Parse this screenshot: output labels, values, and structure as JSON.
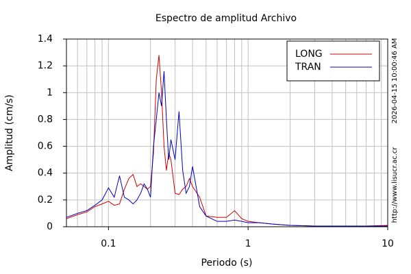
{
  "chart_data": {
    "type": "line",
    "title": "Espectro de amplitud Archivo",
    "xlabel": "Periodo (s)",
    "ylabel": "Amplitud (cm/s)",
    "side_texts": [
      "2026-04-15 10:00:46 AM",
      "http://www.lisucr.ac.cr"
    ],
    "xlog": true,
    "grid": true,
    "legend": "upper right",
    "xlim": [
      0.05,
      10
    ],
    "xticks": [
      0.1,
      1,
      10
    ],
    "ylim": [
      0,
      1.4
    ],
    "yticks": [
      0,
      0.2,
      0.4,
      0.6,
      0.8,
      1,
      1.2,
      1.4
    ],
    "x": [
      0.05,
      0.06,
      0.07,
      0.08,
      0.09,
      0.1,
      0.11,
      0.12,
      0.13,
      0.14,
      0.15,
      0.16,
      0.17,
      0.18,
      0.19,
      0.2,
      0.21,
      0.22,
      0.23,
      0.24,
      0.25,
      0.26,
      0.27,
      0.28,
      0.3,
      0.32,
      0.34,
      0.36,
      0.38,
      0.4,
      0.45,
      0.5,
      0.6,
      0.7,
      0.8,
      0.9,
      1,
      1.2,
      1.5,
      2,
      3,
      5,
      7,
      10
    ],
    "series": [
      {
        "name": "LONG",
        "color": "#cc0000",
        "values": [
          0.06,
          0.09,
          0.11,
          0.15,
          0.17,
          0.19,
          0.16,
          0.17,
          0.28,
          0.36,
          0.39,
          0.3,
          0.32,
          0.3,
          0.28,
          0.3,
          0.55,
          1.1,
          1.28,
          1.0,
          0.6,
          0.42,
          0.55,
          0.5,
          0.25,
          0.24,
          0.28,
          0.3,
          0.36,
          0.3,
          0.22,
          0.08,
          0.07,
          0.07,
          0.12,
          0.06,
          0.04,
          0.03,
          0.02,
          0.01,
          0.005,
          0.005,
          0.005,
          0.01
        ]
      },
      {
        "name": "TRAN",
        "color": "#0000bb",
        "values": [
          0.07,
          0.1,
          0.12,
          0.16,
          0.2,
          0.29,
          0.22,
          0.38,
          0.22,
          0.2,
          0.17,
          0.2,
          0.25,
          0.32,
          0.28,
          0.22,
          0.6,
          0.8,
          1.0,
          0.9,
          1.16,
          0.8,
          0.5,
          0.65,
          0.5,
          0.86,
          0.42,
          0.25,
          0.3,
          0.45,
          0.15,
          0.08,
          0.04,
          0.04,
          0.05,
          0.04,
          0.03,
          0.03,
          0.02,
          0.01,
          0.005,
          0.005,
          0.005,
          0.005
        ]
      }
    ]
  }
}
